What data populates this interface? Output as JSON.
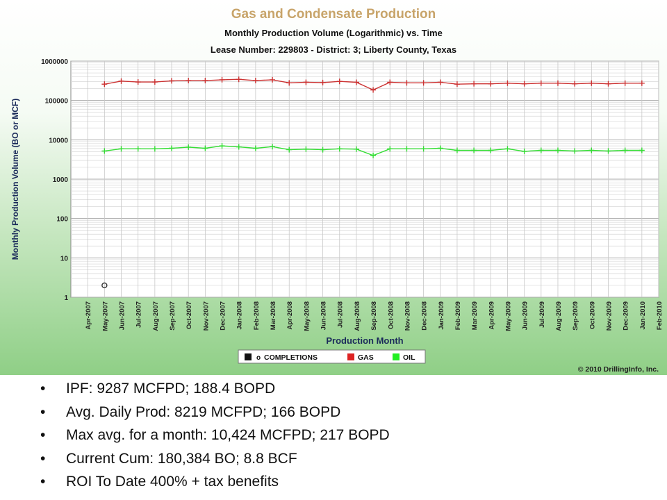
{
  "chart_data": {
    "type": "line",
    "title": "Gas and Condensate Production",
    "subtitle": "Monthly Production Volume (Logarithmic) vs. Time",
    "subtitle2": "Lease Number:  229803 - District: 3;  Liberty County, Texas",
    "ylabel": "Monthly Production Volume (BO or MCF)",
    "xlabel": "Production Month",
    "yscale": "log",
    "ylim": [
      1,
      1000000
    ],
    "y_ticks": [
      "1",
      "10",
      "100",
      "1000",
      "10000",
      "100000",
      "1000000"
    ],
    "categories": [
      "Apr-2007",
      "May-2007",
      "Jun-2007",
      "Jul-2007",
      "Aug-2007",
      "Sep-2007",
      "Oct-2007",
      "Nov-2007",
      "Dec-2007",
      "Jan-2008",
      "Feb-2008",
      "Mar-2008",
      "Apr-2008",
      "May-2008",
      "Jun-2008",
      "Jul-2008",
      "Aug-2008",
      "Sep-2008",
      "Oct-2008",
      "Nov-2008",
      "Dec-2008",
      "Jan-2009",
      "Feb-2009",
      "Mar-2009",
      "Apr-2009",
      "May-2009",
      "Jun-2009",
      "Jul-2009",
      "Aug-2009",
      "Sep-2009",
      "Oct-2009",
      "Nov-2009",
      "Dec-2009",
      "Jan-2010",
      "Feb-2010"
    ],
    "series": [
      {
        "name": "GAS",
        "color": "#cc3333",
        "values": [
          null,
          260000,
          310000,
          295000,
          295000,
          315000,
          320000,
          320000,
          335000,
          345000,
          320000,
          335000,
          280000,
          290000,
          285000,
          305000,
          290000,
          185000,
          290000,
          280000,
          280000,
          290000,
          260000,
          265000,
          265000,
          275000,
          265000,
          275000,
          275000,
          265000,
          275000,
          265000,
          275000,
          275000,
          null
        ]
      },
      {
        "name": "OIL",
        "color": "#33dd33",
        "values": [
          null,
          5200,
          5900,
          5900,
          5900,
          6100,
          6500,
          6100,
          7000,
          6600,
          6100,
          6700,
          5600,
          5800,
          5600,
          5900,
          5800,
          4000,
          5900,
          5900,
          5900,
          6100,
          5400,
          5400,
          5400,
          5900,
          5100,
          5400,
          5400,
          5200,
          5400,
          5200,
          5400,
          5400,
          null
        ]
      }
    ],
    "completions": [
      {
        "x": "May-2007",
        "y": 2
      }
    ],
    "legend": {
      "position": "bottom",
      "items": [
        "COMPLETIONS",
        "GAS",
        "OIL"
      ],
      "completion_marker": "o"
    },
    "copyright": "© 2010 DrillingInfo, Inc.",
    "grid": true
  },
  "bullets": [
    "IPF: 9287 MCFPD; 188.4 BOPD",
    "Avg. Daily Prod: 8219 MCFPD; 166 BOPD",
    "Max avg. for a month: 10,424 MCFPD; 217 BOPD",
    "Current Cum: 180,384 BO; 8.8 BCF",
    "ROI To Date 400% + tax benefits"
  ]
}
